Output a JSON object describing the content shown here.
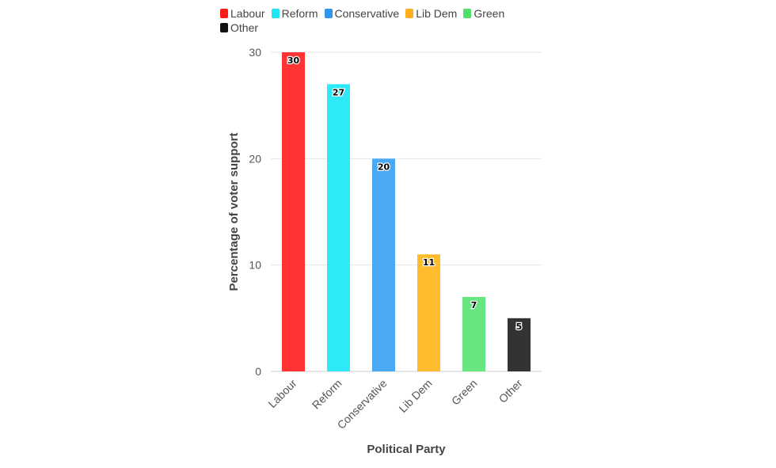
{
  "chart_data": {
    "type": "bar",
    "xlabel": "Political Party",
    "ylabel": "Percentage of voter support",
    "categories": [
      "Labour",
      "Reform",
      "Conservative",
      "Lib Dem",
      "Green",
      "Other"
    ],
    "values": [
      30,
      27,
      20,
      11,
      7,
      5
    ],
    "colors": [
      "#ff3333",
      "#2eeaf9",
      "#4aa8f5",
      "#ffbd2e",
      "#66e680",
      "#333333"
    ],
    "ylim": [
      0,
      30
    ],
    "yticks": [
      "0",
      "10",
      "20",
      "30"
    ],
    "grid": true,
    "legend_position": "top",
    "legend": [
      {
        "label": "Labour",
        "color": "#ff1a1a"
      },
      {
        "label": "Reform",
        "color": "#1fe5f5"
      },
      {
        "label": "Conservative",
        "color": "#2f95ef"
      },
      {
        "label": "Lib Dem",
        "color": "#ffb01f"
      },
      {
        "label": "Green",
        "color": "#4fe06c"
      },
      {
        "label": "Other",
        "color": "#111111"
      }
    ]
  }
}
